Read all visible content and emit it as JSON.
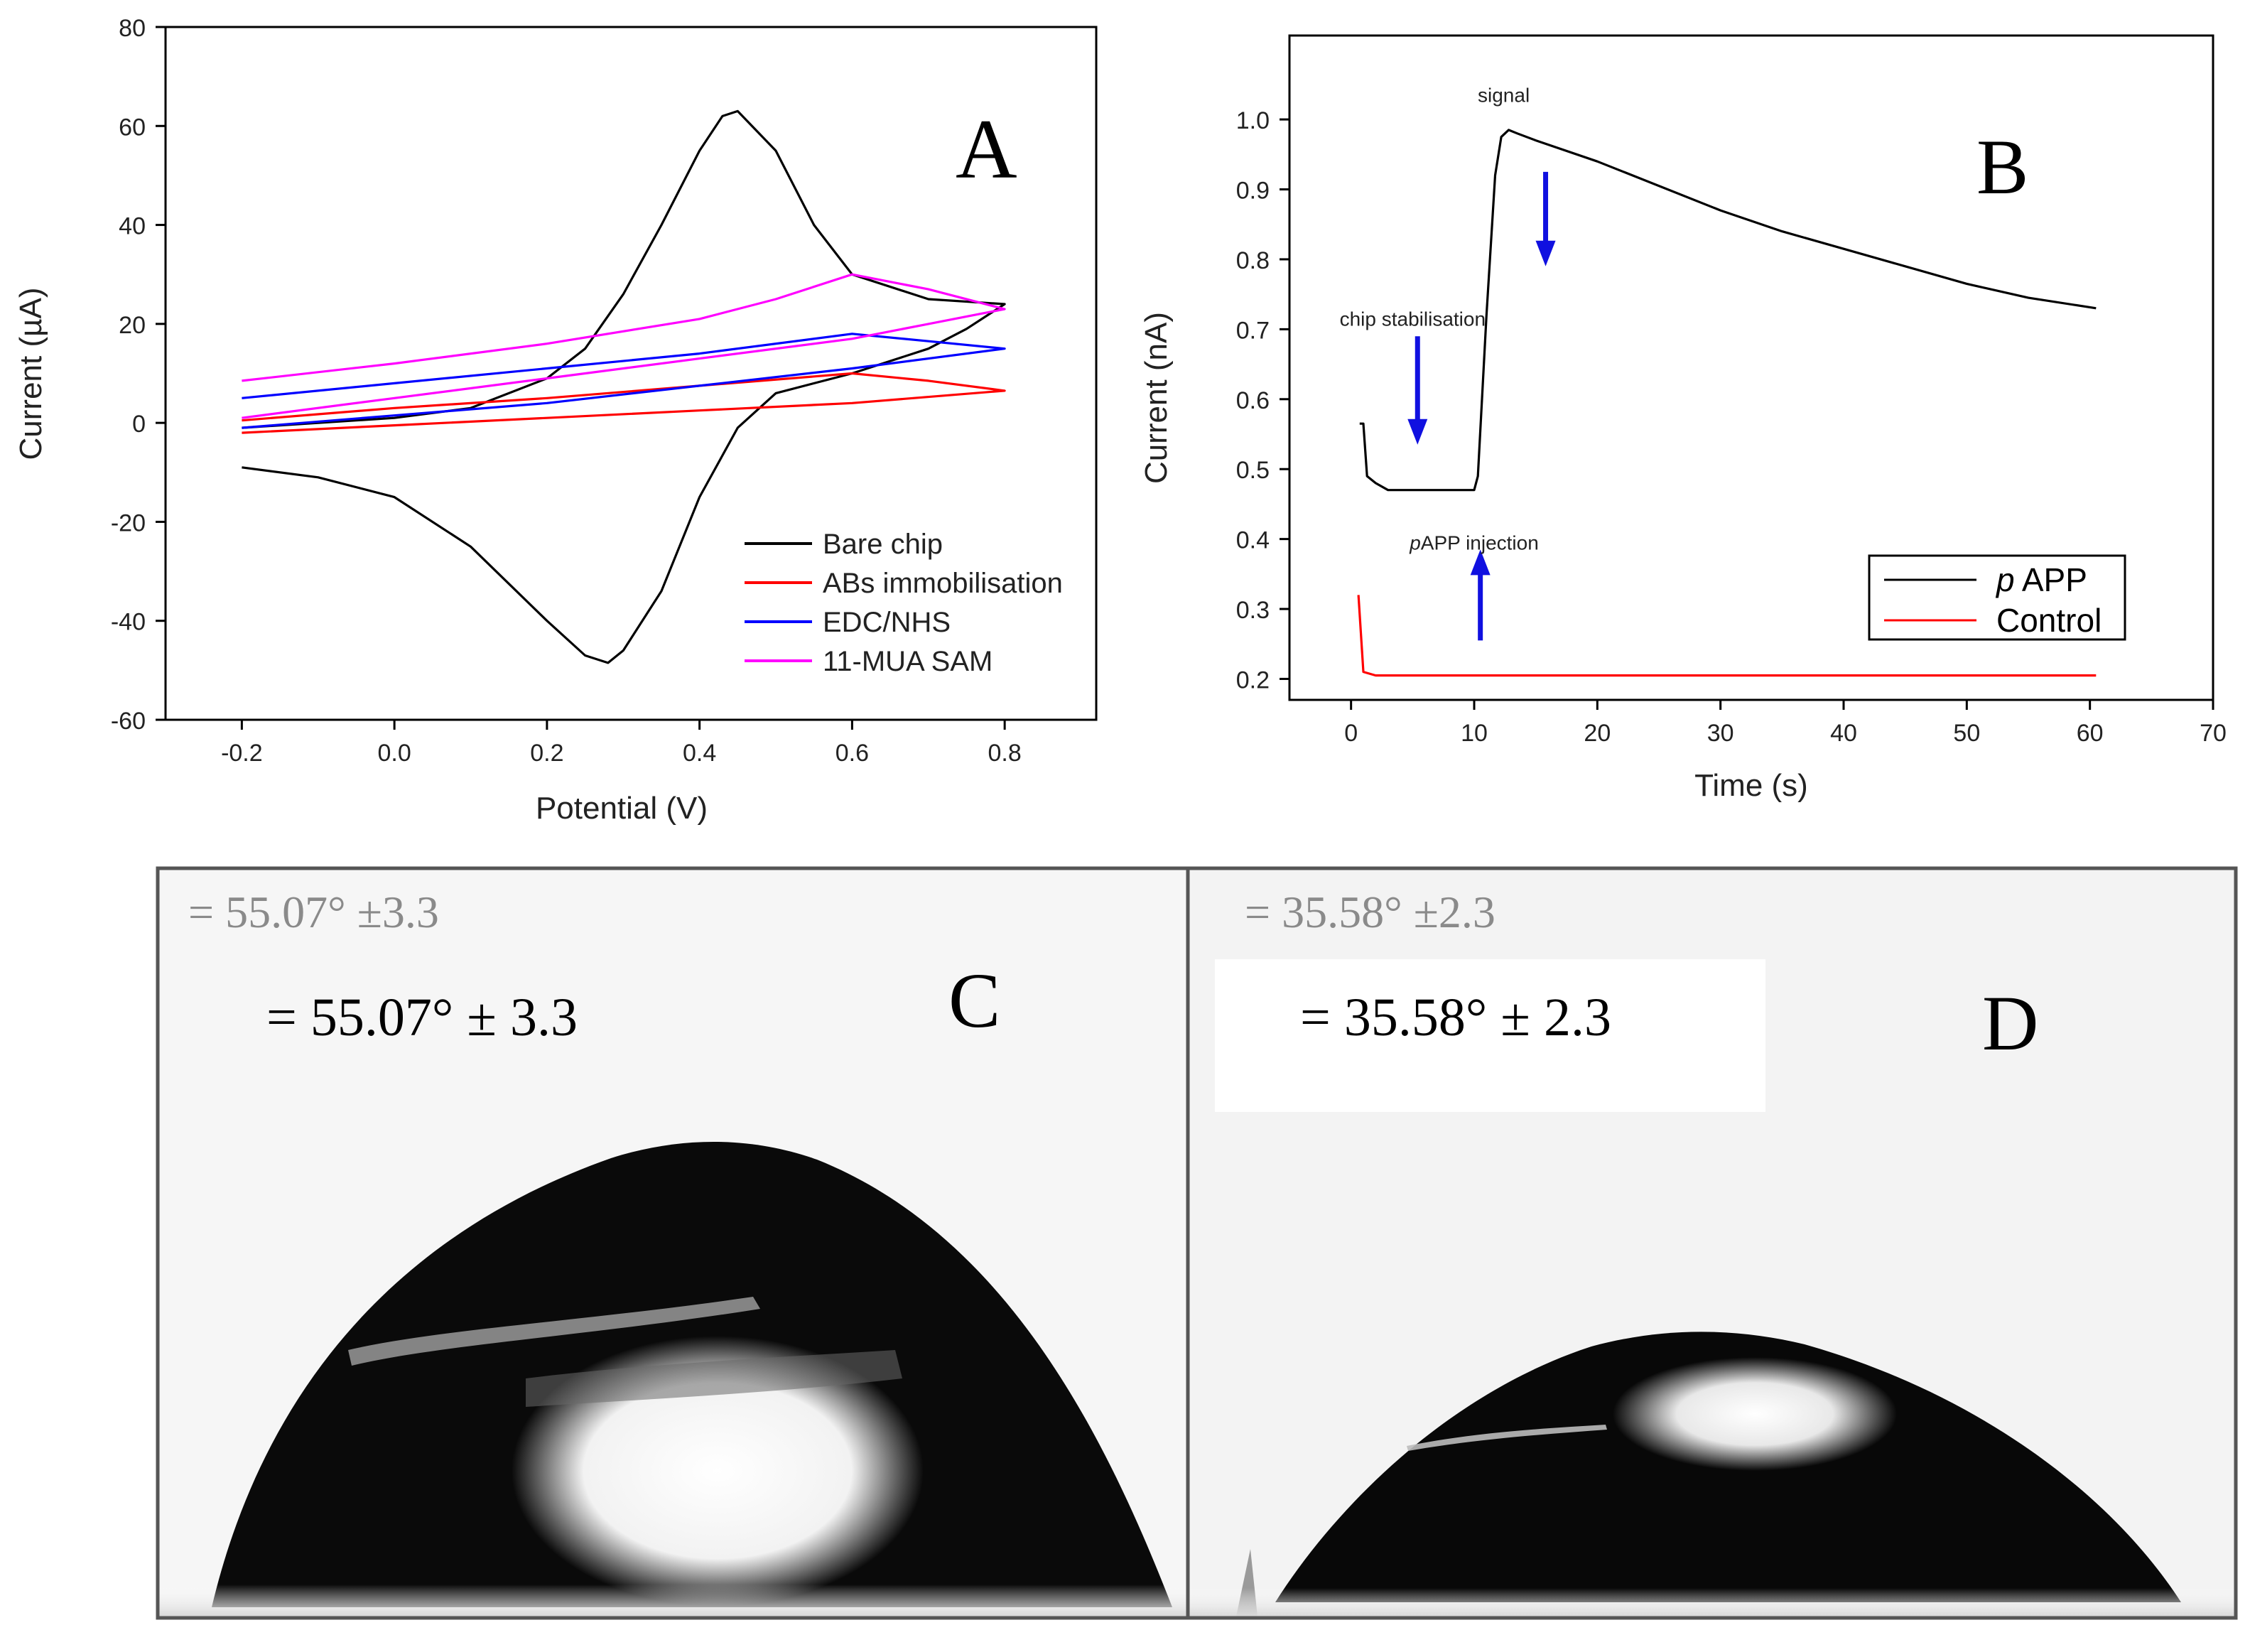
{
  "colors": {
    "black": "#000000",
    "red": "#ff0000",
    "blue": "#0000ff",
    "magenta": "#ff00ff",
    "arrow": "#1010e0"
  },
  "panels": {
    "a": {
      "letter": "A"
    },
    "b": {
      "letter": "B"
    },
    "c": {
      "letter": "C",
      "angle_label_photo": "= 55.07° ±3.3",
      "angle_label": "= 55.07° ± 3.3"
    },
    "d": {
      "letter": "D",
      "angle_label_photo": "= 35.58° ±2.3",
      "angle_label": "= 35.58° ± 2.3"
    }
  },
  "chart_data": [
    {
      "id": "A",
      "type": "line",
      "title": "",
      "xlabel": "Potential (V)",
      "ylabel": "Current (µA)",
      "xlim": [
        -0.3,
        0.92
      ],
      "ylim": [
        -60,
        80
      ],
      "xticks": [
        -0.2,
        0.0,
        0.2,
        0.4,
        0.6,
        0.8
      ],
      "xtick_labels": [
        "-0.2",
        "0.0",
        "0.2",
        "0.4",
        "0.6",
        "0.8"
      ],
      "yticks": [
        -60,
        -40,
        -20,
        0,
        20,
        40,
        60,
        80
      ],
      "ytick_labels": [
        "-60",
        "-40",
        "-20",
        "0",
        "20",
        "40",
        "60",
        "80"
      ],
      "legend_position": "bottom-right",
      "series": [
        {
          "name": "Bare chip",
          "color": "#000000",
          "x": [
            -0.2,
            0.0,
            0.1,
            0.2,
            0.25,
            0.3,
            0.35,
            0.4,
            0.43,
            0.45,
            0.5,
            0.55,
            0.6,
            0.7,
            0.8,
            0.75,
            0.7,
            0.6,
            0.5,
            0.45,
            0.4,
            0.35,
            0.3,
            0.28,
            0.25,
            0.2,
            0.1,
            0.0,
            -0.1,
            -0.2
          ],
          "y": [
            -1,
            1,
            3,
            9,
            15,
            26,
            40,
            55,
            62,
            63,
            55,
            40,
            30,
            25,
            24,
            19,
            15,
            10,
            6,
            -1,
            -15,
            -34,
            -46,
            -48.5,
            -47,
            -40,
            -25,
            -15,
            -11,
            -9
          ]
        },
        {
          "name": "ABs immobilisation",
          "color": "#ff0000",
          "x": [
            -0.2,
            0.0,
            0.2,
            0.4,
            0.6,
            0.7,
            0.8,
            0.6,
            0.4,
            0.2,
            0.0,
            -0.2
          ],
          "y": [
            0.5,
            3,
            5,
            7.5,
            10,
            8.5,
            6.5,
            4,
            2.5,
            1,
            -0.5,
            -2
          ]
        },
        {
          "name": "EDC/NHS",
          "color": "#0000ff",
          "x": [
            -0.2,
            0.0,
            0.2,
            0.4,
            0.6,
            0.7,
            0.8,
            0.6,
            0.4,
            0.2,
            0.0,
            -0.2
          ],
          "y": [
            5,
            8,
            11,
            14,
            18,
            16.5,
            15,
            11,
            7.5,
            4,
            1.5,
            -1
          ]
        },
        {
          "name": "11-MUA SAM",
          "color": "#ff00ff",
          "x": [
            -0.2,
            0.0,
            0.2,
            0.4,
            0.5,
            0.6,
            0.7,
            0.8,
            0.7,
            0.6,
            0.4,
            0.2,
            0.0,
            -0.2
          ],
          "y": [
            8.5,
            12,
            16,
            21,
            25,
            30,
            27,
            23,
            20,
            17,
            13,
            9,
            5,
            1
          ]
        }
      ]
    },
    {
      "id": "B",
      "type": "line",
      "title": "",
      "xlabel": "Time (s)",
      "ylabel": "Current (nA)",
      "xlim": [
        -5,
        70
      ],
      "ylim": [
        0.17,
        1.12
      ],
      "xticks": [
        0,
        10,
        20,
        30,
        40,
        50,
        60,
        70
      ],
      "xtick_labels": [
        "0",
        "10",
        "20",
        "30",
        "40",
        "50",
        "60",
        "70"
      ],
      "yticks": [
        0.2,
        0.3,
        0.4,
        0.5,
        0.6,
        0.7,
        0.8,
        0.9,
        1.0
      ],
      "ytick_labels": [
        "0.2",
        "0.3",
        "0.4",
        "0.5",
        "0.6",
        "0.7",
        "0.8",
        "0.9",
        "1.0"
      ],
      "legend_position": "bottom-right",
      "series": [
        {
          "name": "p APP",
          "legend_prefix": "p",
          "legend_suffix": " APP",
          "color": "#000000",
          "x": [
            0.7,
            1.0,
            1.3,
            2.0,
            3.0,
            4.0,
            6.0,
            8.0,
            10.0,
            10.3,
            11.0,
            11.7,
            12.2,
            12.8,
            13.5,
            15.0,
            20.0,
            25.0,
            30.0,
            35.0,
            40.0,
            45.0,
            50.0,
            55.0,
            60.5
          ],
          "y": [
            0.565,
            0.565,
            0.49,
            0.48,
            0.47,
            0.47,
            0.47,
            0.47,
            0.47,
            0.49,
            0.72,
            0.92,
            0.975,
            0.985,
            0.98,
            0.97,
            0.94,
            0.905,
            0.87,
            0.84,
            0.815,
            0.79,
            0.765,
            0.745,
            0.73
          ]
        },
        {
          "name": "Control",
          "color": "#ff0000",
          "x": [
            0.6,
            1.0,
            2.0,
            10.0,
            30.0,
            60.5
          ],
          "y": [
            0.32,
            0.21,
            0.205,
            0.205,
            0.205,
            0.205
          ]
        }
      ],
      "annotations": [
        {
          "text": "signal",
          "x": 12.4,
          "y": 1.025
        },
        {
          "text": "chip stabilisation",
          "x": 5.0,
          "y": 0.705
        },
        {
          "text_prefix": "p",
          "text_suffix": "APP injection",
          "x": 10.0,
          "y": 0.385
        }
      ],
      "arrows": [
        {
          "x": 5.4,
          "y_from": 0.69,
          "y_to": 0.535,
          "direction": "down"
        },
        {
          "x": 15.8,
          "y_from": 0.925,
          "y_to": 0.79,
          "direction": "down"
        },
        {
          "x": 10.5,
          "y_from": 0.255,
          "y_to": 0.385,
          "direction": "up"
        }
      ]
    }
  ]
}
